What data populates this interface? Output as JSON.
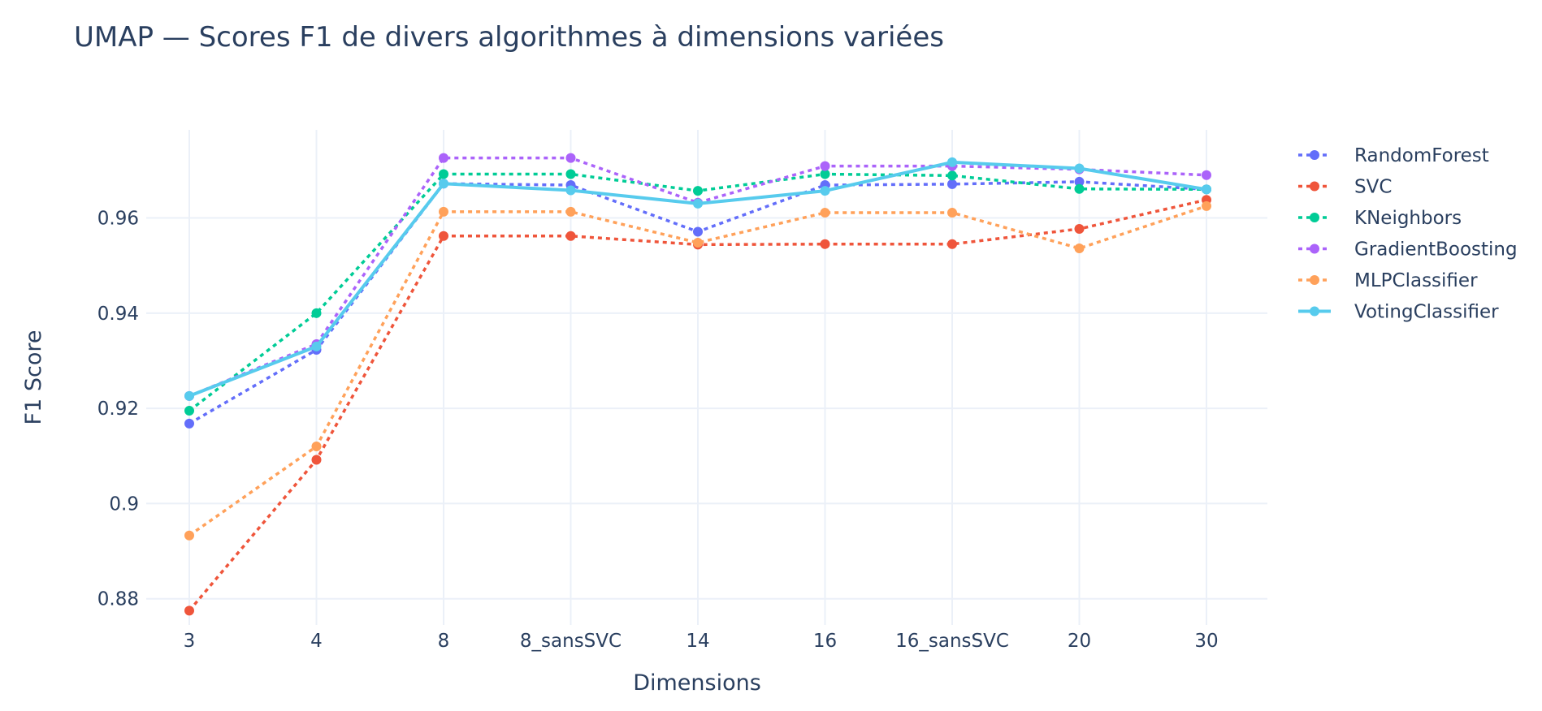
{
  "chart_data": {
    "type": "line",
    "title": "UMAP — Scores F1 de divers algorithmes à dimensions variées",
    "xlabel": "Dimensions",
    "ylabel": "F1 Score",
    "categories": [
      "3",
      "4",
      "8",
      "8_sansSVC",
      "14",
      "16",
      "16_sansSVC",
      "20",
      "30"
    ],
    "ylim": [
      0.8745,
      0.9785
    ],
    "yticks": [
      0.88,
      0.9,
      0.92,
      0.94,
      0.96
    ],
    "ytick_labels": [
      "0.88",
      "0.9",
      "0.92",
      "0.94",
      "0.96"
    ],
    "grid": true,
    "legend_position": "top-right",
    "series": [
      {
        "name": "RandomForest",
        "color": "#636efa",
        "dash": true,
        "values": [
          0.9168,
          0.9323,
          0.9672,
          0.9669,
          0.9571,
          0.9669,
          0.9671,
          0.9676,
          0.966
        ]
      },
      {
        "name": "SVC",
        "color": "#ef553b",
        "dash": true,
        "values": [
          0.8775,
          0.9092,
          0.9562,
          0.9562,
          0.9544,
          0.9545,
          0.9545,
          0.9577,
          0.9638
        ]
      },
      {
        "name": "KNeighbors",
        "color": "#00cc96",
        "dash": true,
        "values": [
          0.9195,
          0.94,
          0.9692,
          0.9692,
          0.9657,
          0.9692,
          0.9689,
          0.9661,
          0.966
        ]
      },
      {
        "name": "GradientBoosting",
        "color": "#ab63fa",
        "dash": true,
        "values": [
          0.9226,
          0.9335,
          0.9726,
          0.9726,
          0.9632,
          0.9709,
          0.9709,
          0.9702,
          0.969
        ]
      },
      {
        "name": "MLPClassifier",
        "color": "#ffa15a",
        "dash": true,
        "values": [
          0.8933,
          0.912,
          0.9613,
          0.9613,
          0.9548,
          0.9611,
          0.9611,
          0.9536,
          0.9625
        ]
      },
      {
        "name": "VotingClassifier",
        "color": "#57cbed",
        "dash": false,
        "values": [
          0.9226,
          0.933,
          0.9672,
          0.9658,
          0.963,
          0.9657,
          0.9717,
          0.9704,
          0.966
        ]
      }
    ]
  }
}
